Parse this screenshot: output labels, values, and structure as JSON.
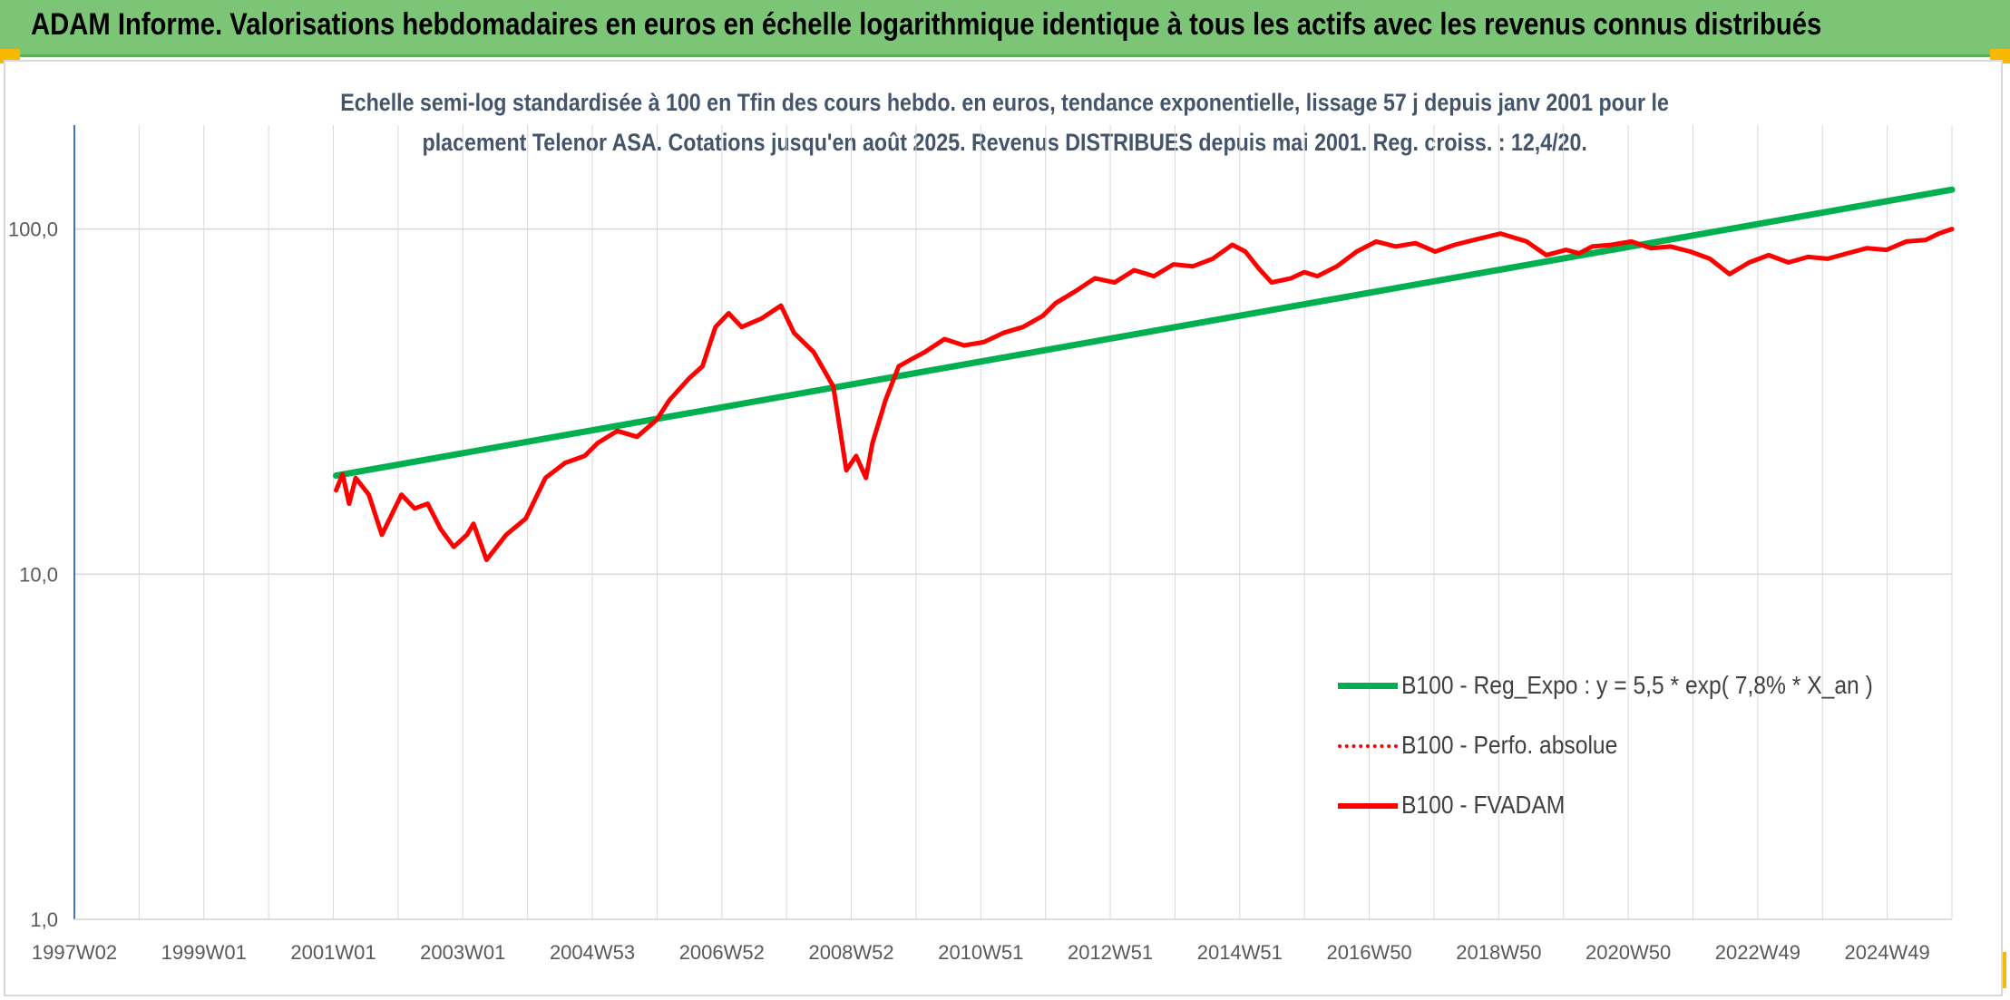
{
  "header": {
    "title": "ADAM Informe. Valorisations hebdomadaires en euros en échelle logarithmique identique à tous les actifs avec les revenus connus distribués"
  },
  "colors": {
    "header_bg": "#7cc576",
    "accent_corner": "#f6b800",
    "regression": "#00b050",
    "series": "#ff0000",
    "axis": "#4472c4",
    "grid": "#d9d9d9",
    "subtitle": "#44546a"
  },
  "chart_data": {
    "type": "line",
    "title_line1": "Echelle semi-log standardisée à 100 en Tfin des cours hebdo. en euros, tendance exponentielle, lissage 57 j depuis janv 2001 pour le",
    "title_line2": "placement Telenor ASA. Cotations jusqu'en août 2025. Revenus DISTRIBUES depuis mai 2001. Reg. croiss. : 12,4/20.",
    "y_scale": "log",
    "ylim": [
      1,
      200
    ],
    "y_ticks": [
      {
        "value": 1,
        "label": "1,0"
      },
      {
        "value": 10,
        "label": "10,0"
      },
      {
        "value": 100,
        "label": "100,0"
      }
    ],
    "xlim": [
      1997.0,
      2025.7
    ],
    "x_ticks": [
      "1997W02",
      "1999W01",
      "2001W01",
      "2003W01",
      "2004W53",
      "2006W52",
      "2008W52",
      "2010W51",
      "2012W51",
      "2014W51",
      "2016W50",
      "2018W50",
      "2020W50",
      "2022W49",
      "2024W49"
    ],
    "legend_position": "right",
    "grid": true,
    "series": [
      {
        "name": "B100 - Reg_Expo : y = 5,5 * exp( 7,8% *  X_an )",
        "style": "solid",
        "color": "#00b050",
        "x": [
          2001.0,
          2025.7
        ],
        "values": [
          19.3,
          130
        ]
      },
      {
        "name": "B100 - Perfo. absolue",
        "style": "dotted",
        "color": "#ff0000",
        "x": [],
        "values": []
      },
      {
        "name": "B100 - FVADAM",
        "style": "solid",
        "color": "#ff0000",
        "x": [
          2001.0,
          2001.1,
          2001.2,
          2001.3,
          2001.5,
          2001.7,
          2002.0,
          2002.2,
          2002.4,
          2002.6,
          2002.8,
          2003.0,
          2003.1,
          2003.3,
          2003.6,
          2003.9,
          2004.2,
          2004.5,
          2004.8,
          2005.0,
          2005.3,
          2005.6,
          2005.9,
          2006.1,
          2006.4,
          2006.6,
          2006.8,
          2007.0,
          2007.2,
          2007.5,
          2007.8,
          2008.0,
          2008.3,
          2008.6,
          2008.8,
          2008.95,
          2009.1,
          2009.2,
          2009.4,
          2009.6,
          2009.8,
          2010.0,
          2010.3,
          2010.6,
          2010.9,
          2011.2,
          2011.5,
          2011.8,
          2012.0,
          2012.3,
          2012.6,
          2012.9,
          2013.2,
          2013.5,
          2013.8,
          2014.1,
          2014.4,
          2014.7,
          2014.9,
          2015.1,
          2015.3,
          2015.6,
          2015.8,
          2016.0,
          2016.3,
          2016.6,
          2016.9,
          2017.2,
          2017.5,
          2017.8,
          2018.1,
          2018.4,
          2018.8,
          2019.2,
          2019.5,
          2019.8,
          2020.0,
          2020.2,
          2020.5,
          2020.8,
          2021.1,
          2021.4,
          2021.7,
          2022.0,
          2022.3,
          2022.6,
          2022.9,
          2023.2,
          2023.5,
          2023.8,
          2024.1,
          2024.4,
          2024.7,
          2025.0,
          2025.3,
          2025.5,
          2025.7
        ],
        "values": [
          17.5,
          19.5,
          16.0,
          19.0,
          17.0,
          13.0,
          17.0,
          15.5,
          16.0,
          13.5,
          12.0,
          13.0,
          14.0,
          11.0,
          13.0,
          14.5,
          19.0,
          21.0,
          22.0,
          24.0,
          26.0,
          25.0,
          28.0,
          32.0,
          37.0,
          40.0,
          52.0,
          57.0,
          52.0,
          55.0,
          60.0,
          50.0,
          44.0,
          35.0,
          20.0,
          22.0,
          19.0,
          24.0,
          32.0,
          40.0,
          42.0,
          44.0,
          48.0,
          46.0,
          47.0,
          50.0,
          52.0,
          56.0,
          61.0,
          66.0,
          72.0,
          70.0,
          76.0,
          73.0,
          79.0,
          78.0,
          82.0,
          90.0,
          86.0,
          77.0,
          70.0,
          72.0,
          75.0,
          73.0,
          78.0,
          86.0,
          92.0,
          89.0,
          91.0,
          86.0,
          90.0,
          93.0,
          97.0,
          92.0,
          84.0,
          87.0,
          85.0,
          89.0,
          90.0,
          92.0,
          88.0,
          89.0,
          86.0,
          82.0,
          74.0,
          80.0,
          84.0,
          80.0,
          83.0,
          82.0,
          85.0,
          88.0,
          87.0,
          92.0,
          93.0,
          97.0,
          100.0
        ]
      }
    ]
  }
}
